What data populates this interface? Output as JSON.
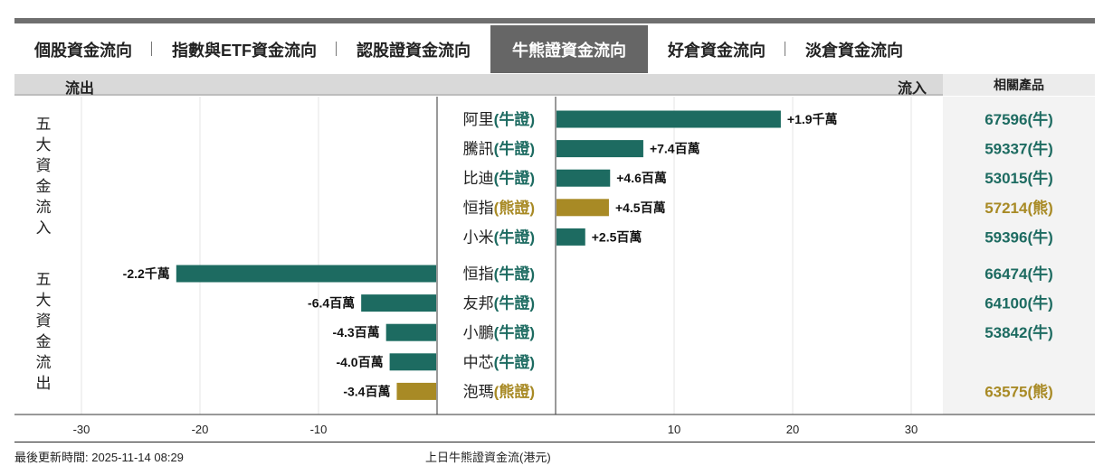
{
  "tabs": [
    {
      "label": "個股資金流向",
      "active": false
    },
    {
      "label": "指數與ETF資金流向",
      "active": false
    },
    {
      "label": "認股證資金流向",
      "active": false
    },
    {
      "label": "牛熊證資金流向",
      "active": true
    },
    {
      "label": "好倉資金流向",
      "active": false
    },
    {
      "label": "淡倉資金流向",
      "active": false
    }
  ],
  "header": {
    "outflow_label": "流出",
    "inflow_label": "流入",
    "products_label": "相關產品"
  },
  "side_labels": {
    "inflow_group": "五大資金流入",
    "outflow_group": "五大資金流出"
  },
  "colors": {
    "bull": "#1d6b61",
    "bear": "#a88a25",
    "bull_text": "#1d6b61",
    "bear_text": "#a88a25"
  },
  "chart_data": {
    "type": "bar",
    "orientation": "horizontal-diverging",
    "xlim": [
      -30,
      30
    ],
    "x_ticks": [
      -30,
      -20,
      -10,
      10,
      20,
      30
    ],
    "unit_axis": "百萬",
    "xlabel": "上日牛熊證資金流(港元)",
    "inflow": [
      {
        "stock": "阿里",
        "type": "(牛證)",
        "kind": "bull",
        "value": 19,
        "label": "+1.9千萬",
        "product": "67596(牛)"
      },
      {
        "stock": "騰訊",
        "type": "(牛證)",
        "kind": "bull",
        "value": 7.4,
        "label": "+7.4百萬",
        "product": "59337(牛)"
      },
      {
        "stock": "比迪",
        "type": "(牛證)",
        "kind": "bull",
        "value": 4.6,
        "label": "+4.6百萬",
        "product": "53015(牛)"
      },
      {
        "stock": "恒指",
        "type": "(熊證)",
        "kind": "bear",
        "value": 4.5,
        "label": "+4.5百萬",
        "product": "57214(熊)"
      },
      {
        "stock": "小米",
        "type": "(牛證)",
        "kind": "bull",
        "value": 2.5,
        "label": "+2.5百萬",
        "product": "59396(牛)"
      }
    ],
    "outflow": [
      {
        "stock": "恒指",
        "type": "(牛證)",
        "kind": "bull",
        "value": -22,
        "label": "-2.2千萬",
        "product": "66474(牛)"
      },
      {
        "stock": "友邦",
        "type": "(牛證)",
        "kind": "bull",
        "value": -6.4,
        "label": "-6.4百萬",
        "product": "64100(牛)"
      },
      {
        "stock": "小鵬",
        "type": "(牛證)",
        "kind": "bull",
        "value": -4.3,
        "label": "-4.3百萬",
        "product": "53842(牛)"
      },
      {
        "stock": "中芯",
        "type": "(牛證)",
        "kind": "bull",
        "value": -4.0,
        "label": "-4.0百萬",
        "product": ""
      },
      {
        "stock": "泡瑪",
        "type": "(熊證)",
        "kind": "bear",
        "value": -3.4,
        "label": "-3.4百萬",
        "product": "63575(熊)"
      }
    ]
  },
  "footer": {
    "updated": "最後更新時間: 2025-11-14 08:29",
    "caption": "上日牛熊證資金流(港元)"
  }
}
